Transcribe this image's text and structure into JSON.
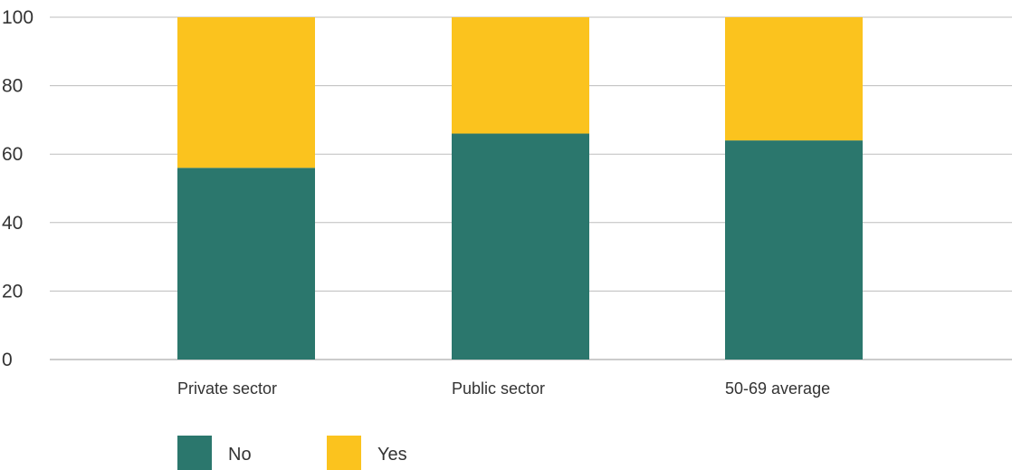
{
  "chart_data": {
    "type": "bar",
    "stacked": true,
    "categories": [
      "Private sector",
      "Public sector",
      "50-69 average"
    ],
    "series": [
      {
        "name": "No",
        "values": [
          56,
          66,
          64
        ],
        "color": "#2b776d"
      },
      {
        "name": "Yes",
        "values": [
          44,
          34,
          36
        ],
        "color": "#fbc31e"
      }
    ],
    "y_ticks": [
      "0",
      "20",
      "40",
      "60",
      "80",
      "100"
    ],
    "ylim": [
      0,
      100
    ],
    "grid": true,
    "legend": {
      "position": "bottom-left"
    }
  }
}
